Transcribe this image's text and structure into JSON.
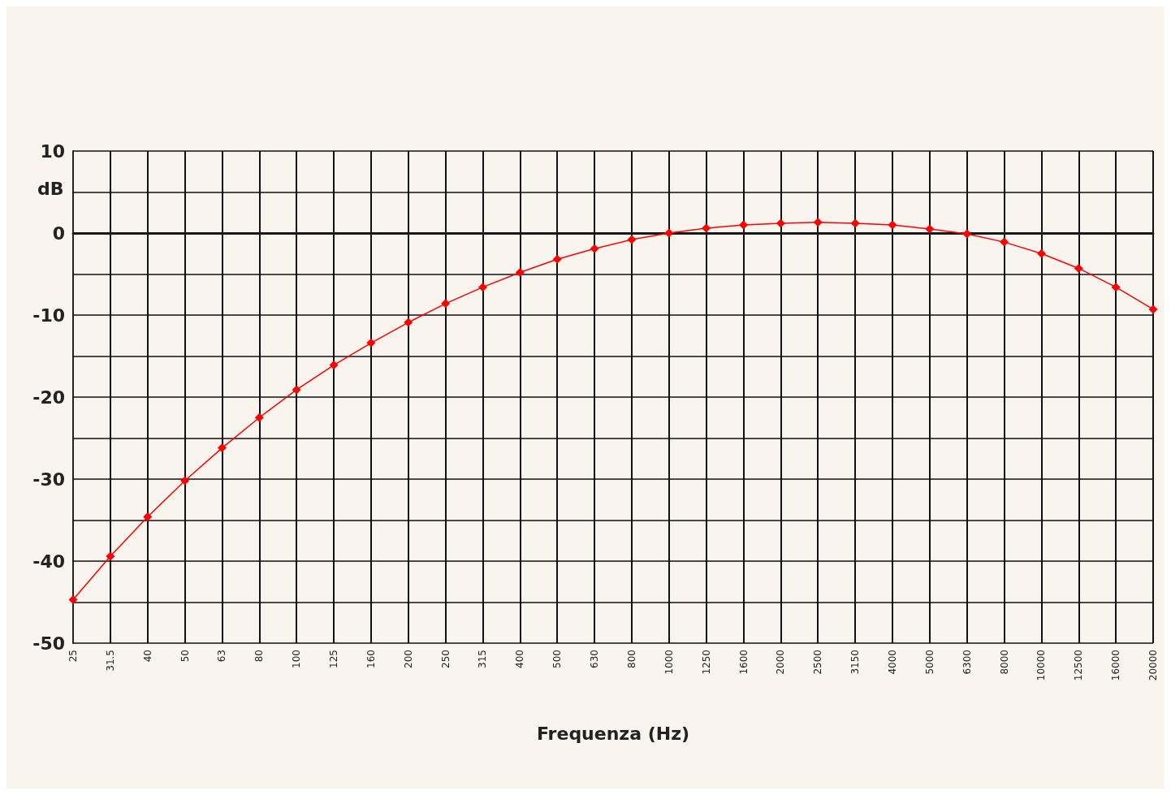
{
  "chart_data": {
    "type": "line",
    "xlabel": "Frequenza (Hz)",
    "ylabel": "dB",
    "categories": [
      "25",
      "31.5",
      "40",
      "50",
      "63",
      "80",
      "100",
      "125",
      "160",
      "200",
      "250",
      "315",
      "400",
      "500",
      "630",
      "800",
      "1000",
      "1250",
      "1600",
      "2000",
      "2500",
      "3150",
      "4000",
      "5000",
      "6300",
      "8000",
      "10000",
      "12500",
      "16000",
      "20000"
    ],
    "series": [
      {
        "color": "#ff0000",
        "values": [
          -44.7,
          -39.4,
          -34.6,
          -30.2,
          -26.2,
          -22.5,
          -19.1,
          -16.1,
          -13.4,
          -10.9,
          -8.6,
          -6.6,
          -4.8,
          -3.2,
          -1.9,
          -0.8,
          0,
          0.6,
          1.0,
          1.2,
          1.3,
          1.2,
          1.0,
          0.5,
          -0.1,
          -1.1,
          -2.5,
          -4.3,
          -6.6,
          -9.3
        ]
      }
    ],
    "ylim": [
      -50,
      10
    ],
    "yticks": [
      -50,
      {
        "value": -45,
        "label": null
      },
      -40,
      {
        "value": -35,
        "label": null
      },
      -30,
      {
        "value": -25,
        "label": null
      },
      -20,
      {
        "value": -15,
        "label": null
      },
      -10,
      {
        "value": -5,
        "label": null
      },
      0,
      {
        "value": 5,
        "label": null
      },
      10
    ],
    "grid": true,
    "marker": "diamond",
    "line_style": "solid"
  }
}
